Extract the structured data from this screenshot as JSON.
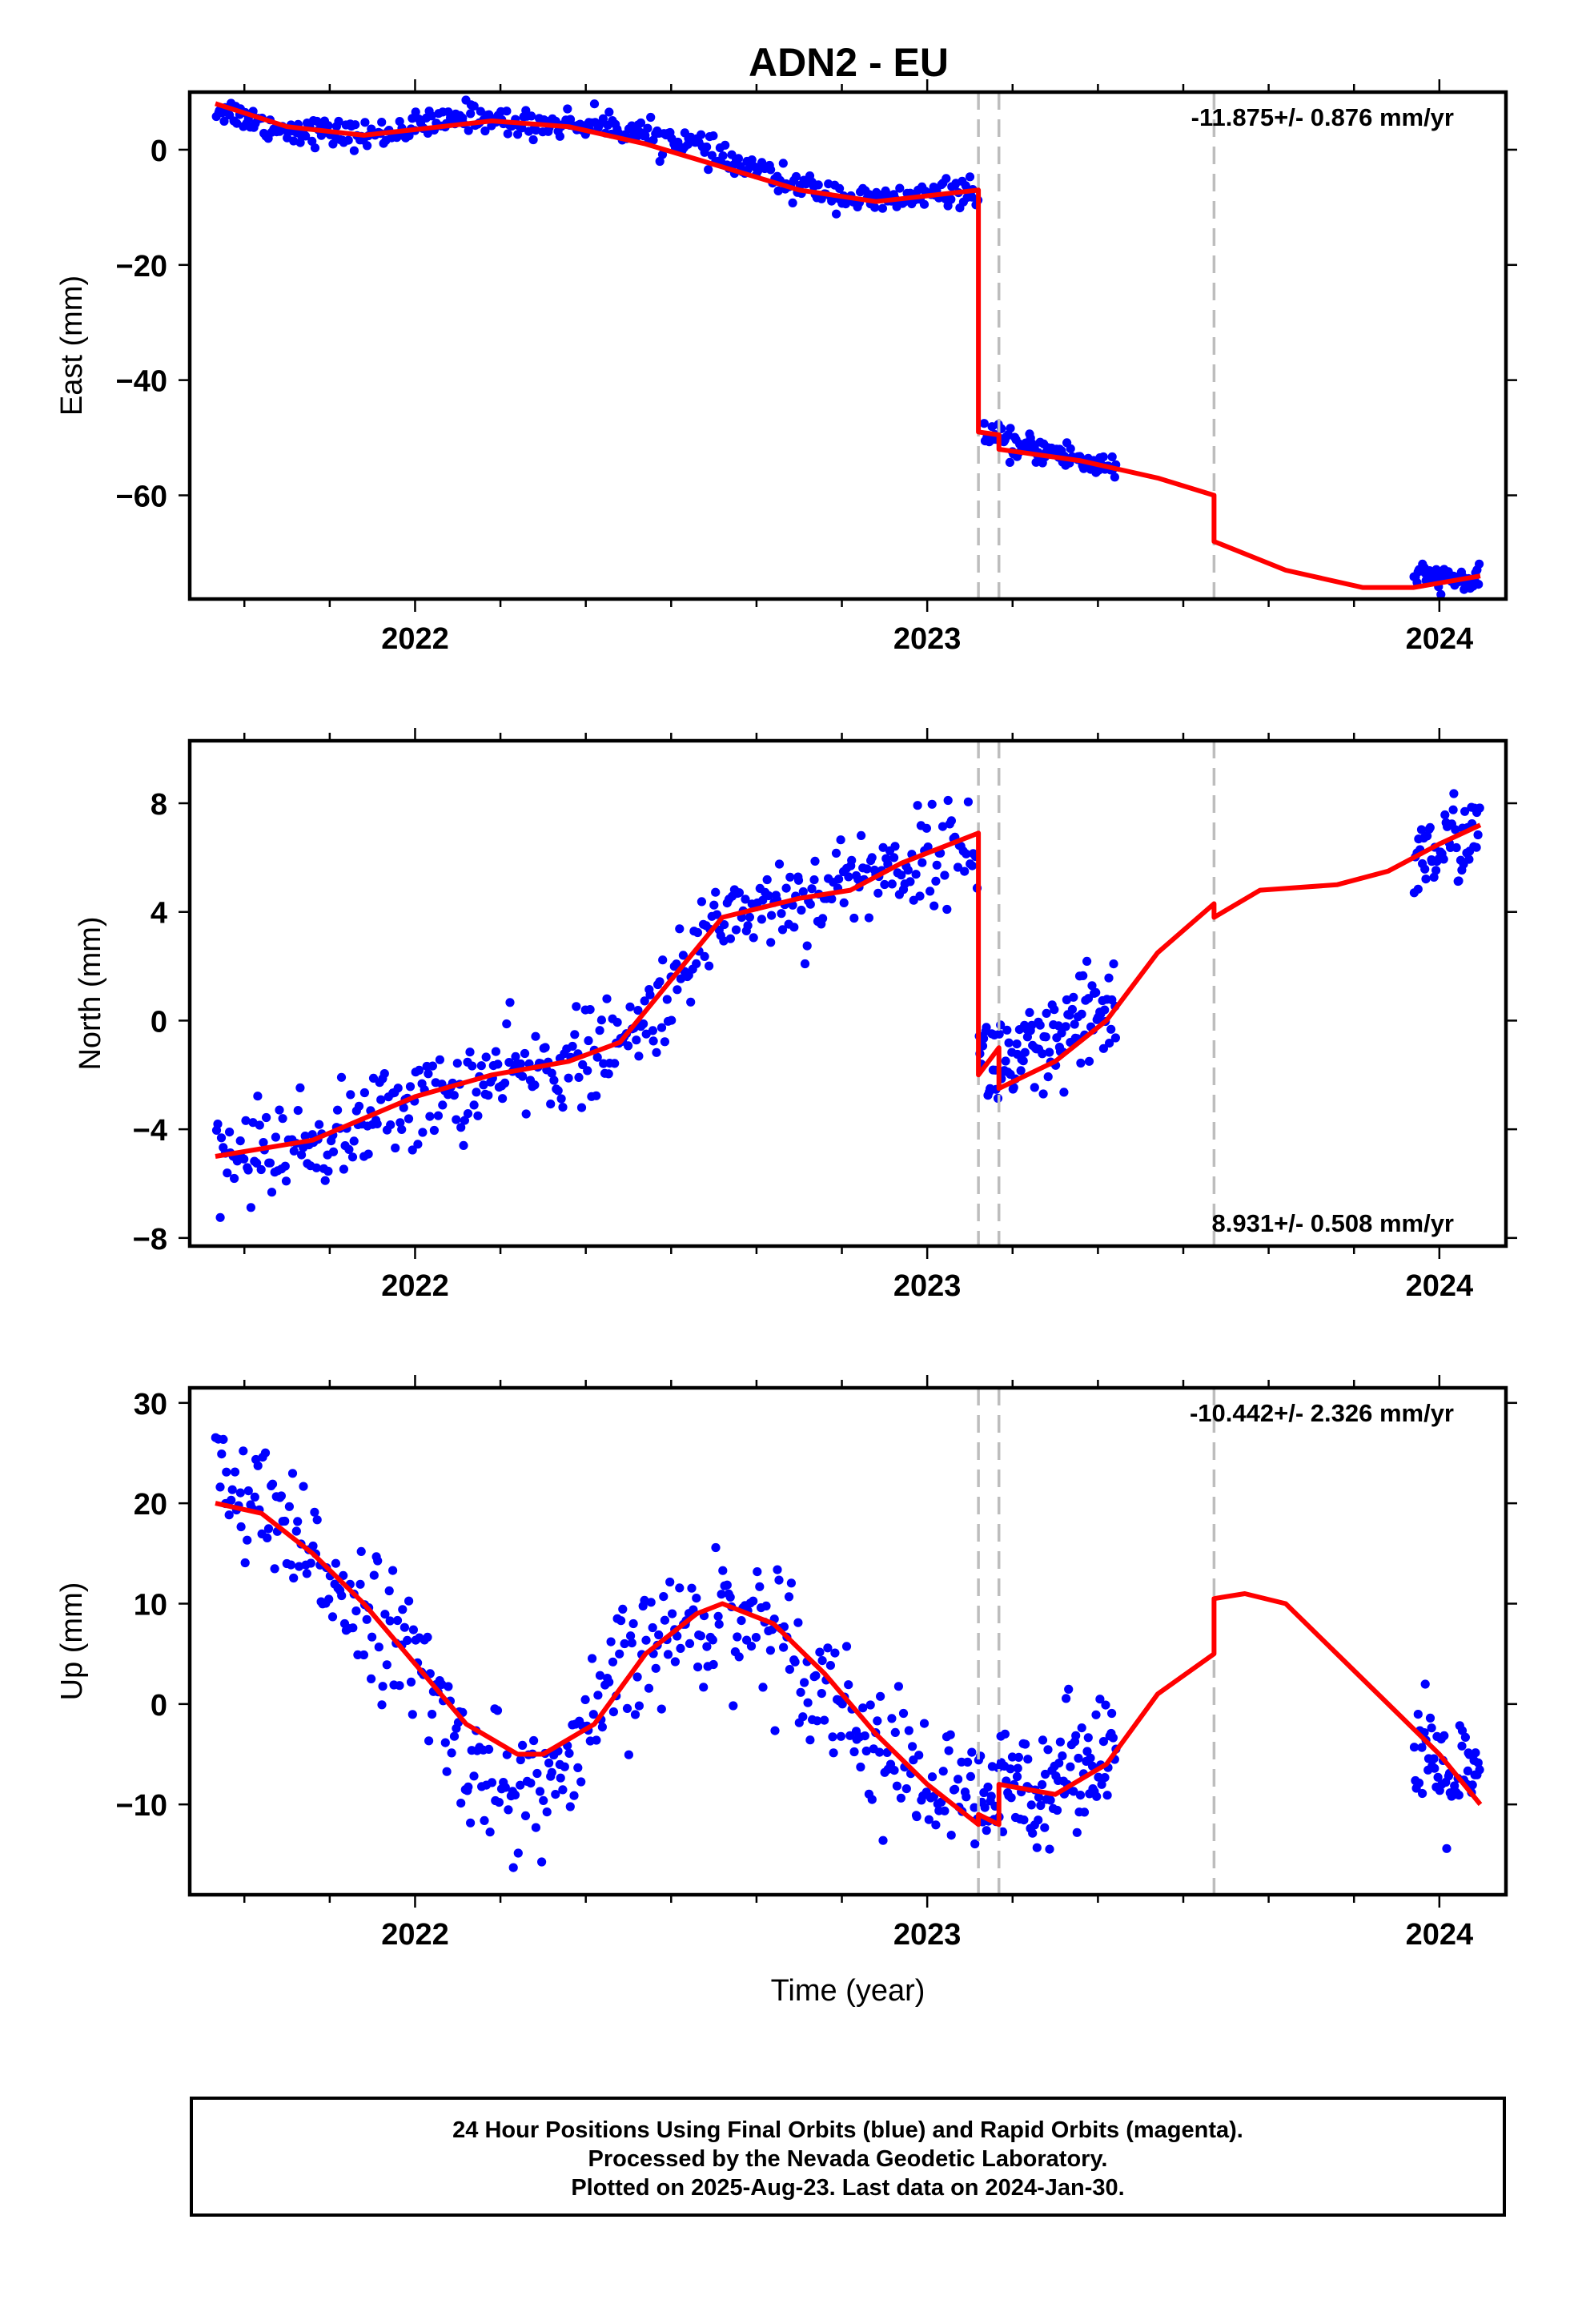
{
  "chart_data": [
    {
      "type": "scatter",
      "title": "ADN2 - EU",
      "ylabel": "East (mm)",
      "xlabel": "",
      "xlim": [
        2021.56,
        2024.13
      ],
      "ylim": [
        -78,
        10
      ],
      "yticks": [
        0,
        -20,
        -40,
        -60
      ],
      "xticks": [
        2022,
        2023,
        2024
      ],
      "rate_label": "-11.875+/- 0.876 mm/yr",
      "rate_position": "top-right",
      "offsets_x": [
        2023.1,
        2023.14,
        2023.56
      ],
      "series": [
        {
          "kind": "observations",
          "color": "#0000ff",
          "segments": [
            {
              "x0": 2021.61,
              "x1": 2023.1,
              "knots": [
                [
                  2021.61,
                  7
                ],
                [
                  2021.75,
                  3.5
                ],
                [
                  2021.9,
                  2.5
                ],
                [
                  2022.05,
                  4.5
                ],
                [
                  2022.1,
                  6
                ],
                [
                  2022.2,
                  4.5
                ],
                [
                  2022.35,
                  4.5
                ],
                [
                  2022.5,
                  2
                ],
                [
                  2022.65,
                  -3
                ],
                [
                  2022.75,
                  -6.5
                ],
                [
                  2022.9,
                  -9
                ],
                [
                  2023.0,
                  -8
                ],
                [
                  2023.09,
                  -7
                ]
              ],
              "noise": 1.2,
              "count": 400
            },
            {
              "x0": 2023.11,
              "x1": 2023.37,
              "knots": [
                [
                  2023.11,
                  -50
                ],
                [
                  2023.2,
                  -52
                ],
                [
                  2023.37,
                  -55
                ]
              ],
              "noise": 1.2,
              "count": 100
            },
            {
              "x0": 2023.95,
              "x1": 2024.08,
              "knots": [
                [
                  2023.95,
                  -74
                ],
                [
                  2024.08,
                  -75
                ]
              ],
              "noise": 1.0,
              "count": 55
            }
          ]
        },
        {
          "kind": "model",
          "color": "#ff0000",
          "points": [
            [
              2021.61,
              8
            ],
            [
              2021.75,
              4
            ],
            [
              2021.9,
              2.5
            ],
            [
              2022.05,
              4
            ],
            [
              2022.15,
              5
            ],
            [
              2022.3,
              4
            ],
            [
              2022.45,
              1
            ],
            [
              2022.6,
              -3
            ],
            [
              2022.75,
              -7
            ],
            [
              2022.9,
              -9
            ],
            [
              2023.0,
              -8
            ],
            [
              2023.1,
              -7
            ],
            [
              2023.1,
              -49
            ],
            [
              2023.14,
              -49.5
            ],
            [
              2023.14,
              -52
            ],
            [
              2023.3,
              -54
            ],
            [
              2023.45,
              -57
            ],
            [
              2023.56,
              -60
            ],
            [
              2023.56,
              -68
            ],
            [
              2023.7,
              -73
            ],
            [
              2023.85,
              -76
            ],
            [
              2023.95,
              -76
            ],
            [
              2024.08,
              -74
            ]
          ]
        }
      ]
    },
    {
      "type": "scatter",
      "ylabel": "North (mm)",
      "xlabel": "",
      "xlim": [
        2021.56,
        2024.13
      ],
      "ylim": [
        -8.3,
        10.3
      ],
      "yticks": [
        8,
        4,
        0,
        -4,
        -8
      ],
      "xticks": [
        2022,
        2023,
        2024
      ],
      "rate_label": "8.931+/- 0.508 mm/yr",
      "rate_position": "bottom-right",
      "offsets_x": [
        2023.1,
        2023.14,
        2023.56
      ],
      "series": [
        {
          "kind": "observations",
          "color": "#0000ff",
          "segments": [
            {
              "x0": 2021.61,
              "x1": 2023.1,
              "knots": [
                [
                  2021.61,
                  -5
                ],
                [
                  2021.8,
                  -4.5
                ],
                [
                  2022.0,
                  -3
                ],
                [
                  2022.2,
                  -2
                ],
                [
                  2022.3,
                  -1.5
                ],
                [
                  2022.4,
                  -1
                ],
                [
                  2022.5,
                  1
                ],
                [
                  2022.6,
                  4
                ],
                [
                  2022.75,
                  4.5
                ],
                [
                  2022.9,
                  5.5
                ],
                [
                  2023.09,
                  6.5
                ]
              ],
              "noise": 0.85,
              "count": 420
            },
            {
              "x0": 2023.1,
              "x1": 2023.37,
              "knots": [
                [
                  2023.1,
                  -1.5
                ],
                [
                  2023.2,
                  -1.5
                ],
                [
                  2023.37,
                  0.5
                ]
              ],
              "noise": 1.0,
              "count": 110
            },
            {
              "x0": 2023.95,
              "x1": 2024.08,
              "knots": [
                [
                  2023.95,
                  6
                ],
                [
                  2024.08,
                  7
                ]
              ],
              "noise": 0.8,
              "count": 55
            }
          ]
        },
        {
          "kind": "model",
          "color": "#ff0000",
          "points": [
            [
              2021.61,
              -5
            ],
            [
              2021.8,
              -4.4
            ],
            [
              2022.0,
              -2.8
            ],
            [
              2022.15,
              -2
            ],
            [
              2022.3,
              -1.5
            ],
            [
              2022.4,
              -0.8
            ],
            [
              2022.5,
              1.5
            ],
            [
              2022.6,
              3.8
            ],
            [
              2022.75,
              4.5
            ],
            [
              2022.85,
              4.8
            ],
            [
              2022.95,
              5.8
            ],
            [
              2023.1,
              6.9
            ],
            [
              2023.1,
              -2
            ],
            [
              2023.14,
              -1
            ],
            [
              2023.14,
              -2.5
            ],
            [
              2023.25,
              -1.5
            ],
            [
              2023.35,
              0
            ],
            [
              2023.45,
              2.5
            ],
            [
              2023.56,
              4.3
            ],
            [
              2023.56,
              3.8
            ],
            [
              2023.65,
              4.8
            ],
            [
              2023.8,
              5
            ],
            [
              2023.9,
              5.5
            ],
            [
              2024.0,
              6.5
            ],
            [
              2024.08,
              7.2
            ]
          ]
        }
      ]
    },
    {
      "type": "scatter",
      "ylabel": "Up (mm)",
      "xlabel": "Time (year)",
      "xlim": [
        2021.56,
        2024.13
      ],
      "ylim": [
        -19,
        31.5
      ],
      "yticks": [
        30,
        20,
        10,
        0,
        -10
      ],
      "xticks": [
        2022,
        2023,
        2024
      ],
      "rate_label": "-10.442+/- 2.326 mm/yr",
      "rate_position": "top-right",
      "offsets_x": [
        2023.1,
        2023.14,
        2023.56
      ],
      "series": [
        {
          "kind": "observations",
          "color": "#0000ff",
          "segments": [
            {
              "x0": 2021.61,
              "x1": 2023.1,
              "knots": [
                [
                  2021.61,
                  22
                ],
                [
                  2021.7,
                  19
                ],
                [
                  2021.8,
                  14
                ],
                [
                  2021.9,
                  10
                ],
                [
                  2022.0,
                  4
                ],
                [
                  2022.1,
                  -5
                ],
                [
                  2022.2,
                  -9
                ],
                [
                  2022.3,
                  -7
                ],
                [
                  2022.4,
                  3
                ],
                [
                  2022.5,
                  7
                ],
                [
                  2022.6,
                  9
                ],
                [
                  2022.7,
                  8
                ],
                [
                  2022.8,
                  2
                ],
                [
                  2022.9,
                  -4
                ],
                [
                  2023.0,
                  -8
                ],
                [
                  2023.09,
                  -10
                ]
              ],
              "noise": 3.2,
              "count": 420
            },
            {
              "x0": 2023.1,
              "x1": 2023.37,
              "knots": [
                [
                  2023.1,
                  -10
                ],
                [
                  2023.2,
                  -8
                ],
                [
                  2023.37,
                  -4
                ]
              ],
              "noise": 3.0,
              "count": 110
            },
            {
              "x0": 2023.95,
              "x1": 2024.08,
              "knots": [
                [
                  2023.95,
                  -6
                ],
                [
                  2024.08,
                  -8
                ]
              ],
              "noise": 3.0,
              "count": 55
            }
          ]
        },
        {
          "kind": "model",
          "color": "#ff0000",
          "points": [
            [
              2021.61,
              20
            ],
            [
              2021.7,
              19
            ],
            [
              2021.8,
              15
            ],
            [
              2021.9,
              10
            ],
            [
              2022.0,
              4
            ],
            [
              2022.1,
              -2
            ],
            [
              2022.2,
              -5
            ],
            [
              2022.25,
              -5
            ],
            [
              2022.35,
              -2
            ],
            [
              2022.45,
              5
            ],
            [
              2022.55,
              9
            ],
            [
              2022.6,
              10
            ],
            [
              2022.7,
              8
            ],
            [
              2022.8,
              3
            ],
            [
              2022.9,
              -3
            ],
            [
              2023.0,
              -8
            ],
            [
              2023.1,
              -12
            ],
            [
              2023.1,
              -11
            ],
            [
              2023.14,
              -12
            ],
            [
              2023.14,
              -8
            ],
            [
              2023.25,
              -9
            ],
            [
              2023.35,
              -6
            ],
            [
              2023.45,
              1
            ],
            [
              2023.56,
              5
            ],
            [
              2023.56,
              10.5
            ],
            [
              2023.62,
              11
            ],
            [
              2023.7,
              10
            ],
            [
              2023.8,
              5
            ],
            [
              2023.9,
              0
            ],
            [
              2024.0,
              -5
            ],
            [
              2024.08,
              -10
            ]
          ]
        }
      ]
    }
  ],
  "footer": {
    "line1": "24 Hour Positions Using Final Orbits (blue) and Rapid Orbits (magenta).",
    "line2": "Processed by the Nevada Geodetic Laboratory.",
    "line3": "Plotted on 2025-Aug-23. Last data on 2024-Jan-30."
  }
}
